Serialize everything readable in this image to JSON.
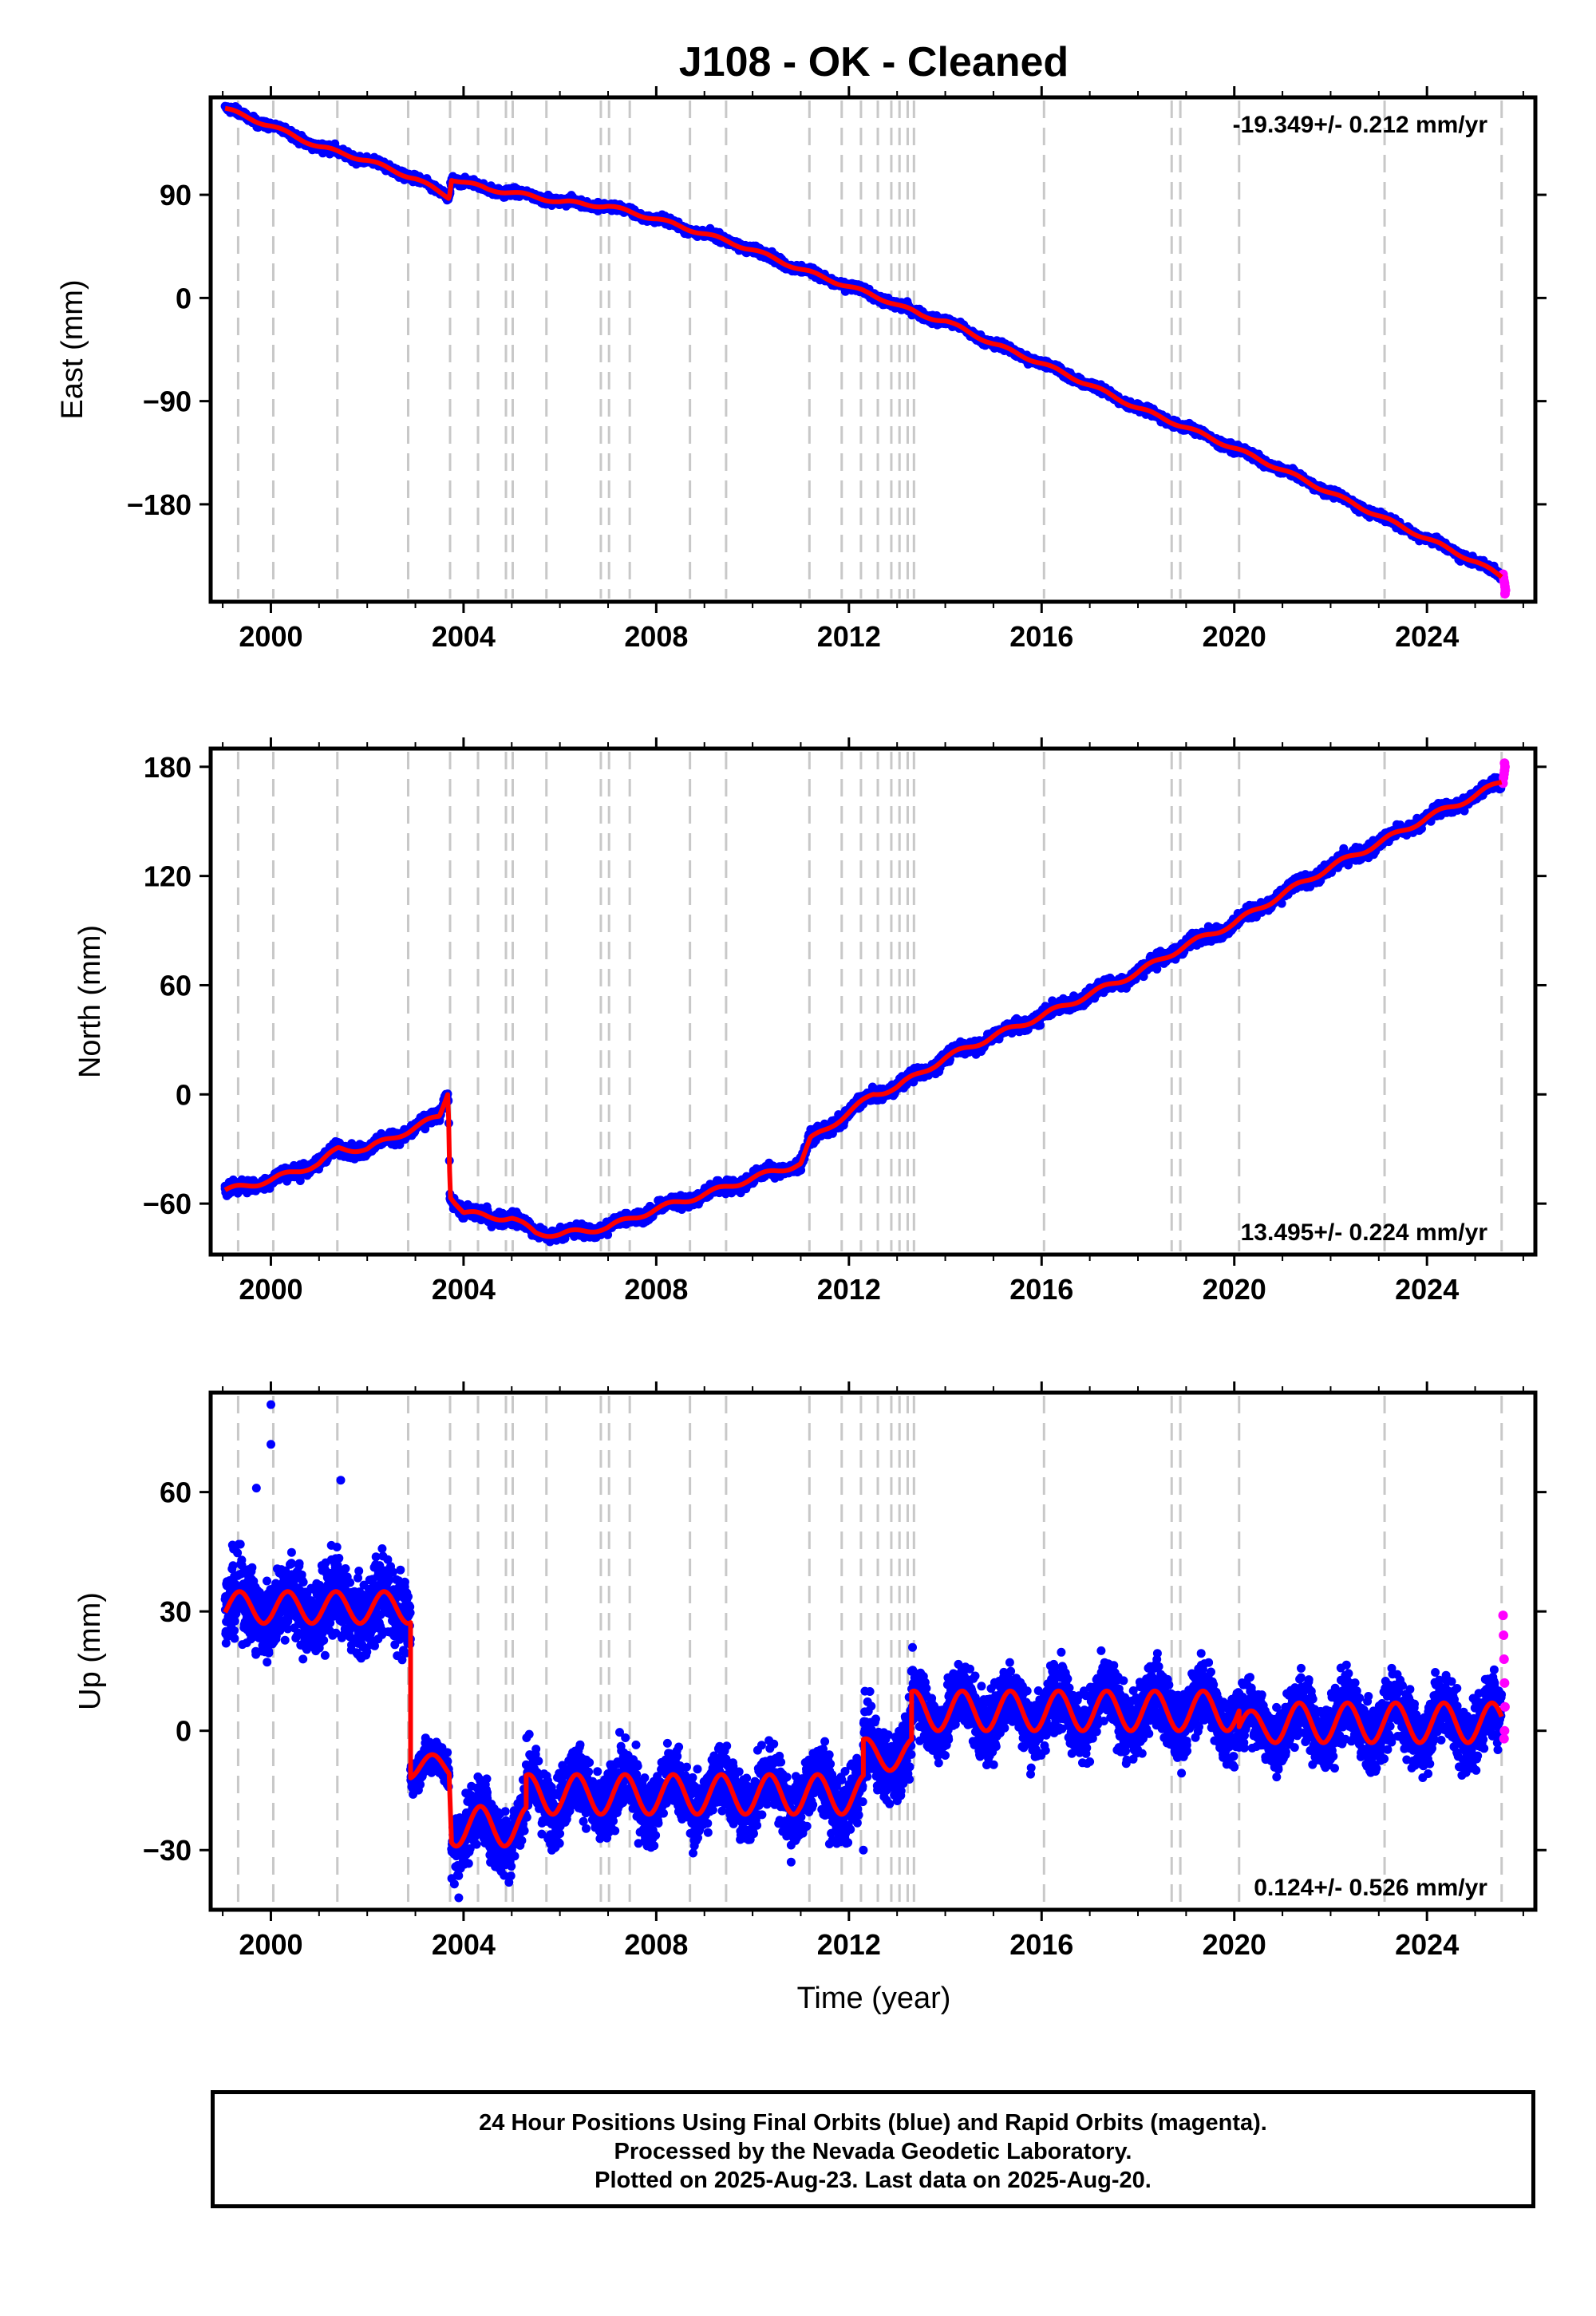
{
  "title": "J108  - OK - Cleaned",
  "x_axis_label": "Time (year)",
  "footer": {
    "line1": "24 Hour Positions Using Final Orbits (blue) and Rapid Orbits (magenta).",
    "line2": "Processed by the Nevada Geodetic Laboratory.",
    "line3": "Plotted on 2025-Aug-23. Last data on 2025-Aug-20."
  },
  "colors": {
    "final_orbits": "#0000ff",
    "rapid_orbits": "#ff00ff",
    "model": "#ff0000",
    "event_lines": "#c8c8c8",
    "frame": "#000000"
  },
  "chart_data": [
    {
      "type": "scatter",
      "component": "east",
      "ylabel": "East (mm)",
      "xlim": [
        1998.75,
        2026.25
      ],
      "ylim": [
        -265,
        175
      ],
      "xticks": [
        2000,
        2004,
        2008,
        2012,
        2016,
        2020,
        2024
      ],
      "yticks": [
        90,
        0,
        -90,
        -180
      ],
      "rate_label": "-19.349+/- 0.212 mm/yr",
      "rate_position": "top-right",
      "grid": false,
      "event_years": [
        1999.32,
        2000.05,
        2001.38,
        2002.85,
        2003.72,
        2004.3,
        2004.88,
        2005.02,
        2005.72,
        2006.85,
        2007.02,
        2007.45,
        2008.7,
        2009.45,
        2011.18,
        2011.85,
        2012.25,
        2012.6,
        2012.88,
        2013.05,
        2013.22,
        2013.35,
        2016.05,
        2018.7,
        2018.88,
        2020.1,
        2023.12,
        2025.55
      ],
      "model_path": [
        [
          1999.05,
          165
        ],
        [
          2000.0,
          150
        ],
        [
          2001.0,
          132
        ],
        [
          2002.0,
          120
        ],
        [
          2003.0,
          104
        ],
        [
          2003.7,
          88
        ],
        [
          2003.75,
          104
        ],
        [
          2004.5,
          95
        ],
        [
          2005.0,
          92
        ],
        [
          2006.0,
          84
        ],
        [
          2007.0,
          80
        ],
        [
          2008.0,
          69
        ],
        [
          2009.0,
          56
        ],
        [
          2010.0,
          42
        ],
        [
          2011.0,
          25
        ],
        [
          2012.0,
          10
        ],
        [
          2012.9,
          -4
        ],
        [
          2013.5,
          -15
        ],
        [
          2014.0,
          -20
        ],
        [
          2015.0,
          -40
        ],
        [
          2016.0,
          -57
        ],
        [
          2017.0,
          -76
        ],
        [
          2018.0,
          -96
        ],
        [
          2019.0,
          -113
        ],
        [
          2020.0,
          -131
        ],
        [
          2021.0,
          -150
        ],
        [
          2022.0,
          -170
        ],
        [
          2023.0,
          -190
        ],
        [
          2024.0,
          -210
        ],
        [
          2025.0,
          -230
        ],
        [
          2025.55,
          -243
        ]
      ],
      "rapid_points": [
        [
          2025.58,
          -241
        ],
        [
          2025.59,
          -244
        ],
        [
          2025.6,
          -247
        ],
        [
          2025.61,
          -249
        ],
        [
          2025.62,
          -252
        ],
        [
          2025.63,
          -255
        ],
        [
          2025.62,
          -258
        ]
      ]
    },
    {
      "type": "scatter",
      "component": "north",
      "ylabel": "North (mm)",
      "xlim": [
        1998.75,
        2026.25
      ],
      "ylim": [
        -88,
        190
      ],
      "xticks": [
        2000,
        2004,
        2008,
        2012,
        2016,
        2020,
        2024
      ],
      "yticks": [
        180,
        120,
        60,
        0,
        -60
      ],
      "rate_label": "13.495+/- 0.224 mm/yr",
      "rate_position": "bottom-right",
      "grid": false,
      "event_years": [
        1999.32,
        2000.05,
        2001.38,
        2002.85,
        2003.72,
        2004.3,
        2004.88,
        2005.02,
        2005.72,
        2006.85,
        2007.02,
        2007.45,
        2008.7,
        2009.45,
        2011.18,
        2011.85,
        2012.25,
        2012.6,
        2012.88,
        2013.05,
        2013.22,
        2013.35,
        2016.05,
        2018.7,
        2018.88,
        2020.1,
        2023.12,
        2025.55
      ],
      "model_path": [
        [
          1999.05,
          -53
        ],
        [
          2000.0,
          -47
        ],
        [
          2001.0,
          -38
        ],
        [
          2001.4,
          -30
        ],
        [
          2002.0,
          -30
        ],
        [
          2002.85,
          -20
        ],
        [
          2003.5,
          -12
        ],
        [
          2003.68,
          2
        ],
        [
          2003.72,
          -55
        ],
        [
          2004.0,
          -65
        ],
        [
          2004.5,
          -67
        ],
        [
          2005.0,
          -68
        ],
        [
          2005.5,
          -76
        ],
        [
          2006.0,
          -77
        ],
        [
          2007.0,
          -73
        ],
        [
          2008.0,
          -63
        ],
        [
          2009.0,
          -55
        ],
        [
          2010.0,
          -46
        ],
        [
          2011.0,
          -38
        ],
        [
          2011.2,
          -25
        ],
        [
          2012.0,
          -10
        ],
        [
          2012.5,
          0
        ],
        [
          2013.0,
          4
        ],
        [
          2013.5,
          12
        ],
        [
          2014.0,
          20
        ],
        [
          2015.0,
          32
        ],
        [
          2016.0,
          43
        ],
        [
          2017.0,
          55
        ],
        [
          2018.0,
          67
        ],
        [
          2019.0,
          82
        ],
        [
          2020.0,
          94
        ],
        [
          2021.0,
          110
        ],
        [
          2022.0,
          125
        ],
        [
          2023.0,
          138
        ],
        [
          2024.0,
          152
        ],
        [
          2025.0,
          164
        ],
        [
          2025.55,
          172
        ]
      ],
      "rapid_points": [
        [
          2025.58,
          171
        ],
        [
          2025.59,
          174
        ],
        [
          2025.6,
          176
        ],
        [
          2025.61,
          178
        ],
        [
          2025.62,
          180
        ],
        [
          2025.61,
          182
        ]
      ]
    },
    {
      "type": "scatter",
      "component": "up",
      "ylabel": "Up (mm)",
      "xlim": [
        1998.75,
        2026.25
      ],
      "ylim": [
        -45,
        85
      ],
      "xticks": [
        2000,
        2004,
        2008,
        2012,
        2016,
        2020,
        2024
      ],
      "yticks": [
        60,
        30,
        0,
        -30
      ],
      "rate_label": "0.124+/- 0.526 mm/yr",
      "rate_position": "bottom-right",
      "grid": false,
      "event_years": [
        1999.32,
        2000.05,
        2001.38,
        2002.85,
        2003.72,
        2004.3,
        2004.88,
        2005.02,
        2005.72,
        2006.85,
        2007.02,
        2007.45,
        2008.7,
        2009.45,
        2011.18,
        2011.85,
        2012.25,
        2012.6,
        2012.88,
        2013.05,
        2013.22,
        2013.35,
        2016.05,
        2018.7,
        2018.88,
        2020.1,
        2023.12,
        2025.55
      ],
      "segments": [
        {
          "start": 1999.05,
          "end": 2002.9,
          "mean": 31,
          "amp": 4,
          "spread": 7
        },
        {
          "start": 2002.9,
          "end": 2003.7,
          "mean": -9,
          "amp": 3,
          "spread": 3
        },
        {
          "start": 2003.75,
          "end": 2005.3,
          "mean": -24,
          "amp": 5,
          "spread": 6
        },
        {
          "start": 2005.3,
          "end": 2012.3,
          "mean": -16,
          "amp": 5,
          "spread": 6
        },
        {
          "start": 2012.3,
          "end": 2013.3,
          "mean": -6,
          "amp": 4,
          "spread": 6
        },
        {
          "start": 2013.3,
          "end": 2020.1,
          "mean": 5,
          "amp": 5,
          "spread": 6
        },
        {
          "start": 2020.1,
          "end": 2020.8,
          "mean": 1,
          "amp": 4,
          "spread": 5
        },
        {
          "start": 2020.8,
          "end": 2025.55,
          "mean": 2,
          "amp": 5,
          "spread": 6
        }
      ],
      "outliers": [
        [
          2000.0,
          82
        ],
        [
          2000.0,
          72
        ],
        [
          1999.7,
          61
        ],
        [
          2001.45,
          63
        ],
        [
          2012.3,
          -30
        ],
        [
          2010.8,
          -33
        ],
        [
          2003.9,
          -42
        ]
      ],
      "rapid_points": [
        [
          2025.58,
          29
        ],
        [
          2025.59,
          24
        ],
        [
          2025.6,
          18
        ],
        [
          2025.61,
          12
        ],
        [
          2025.62,
          6
        ],
        [
          2025.61,
          0
        ],
        [
          2025.6,
          -2
        ]
      ]
    }
  ]
}
